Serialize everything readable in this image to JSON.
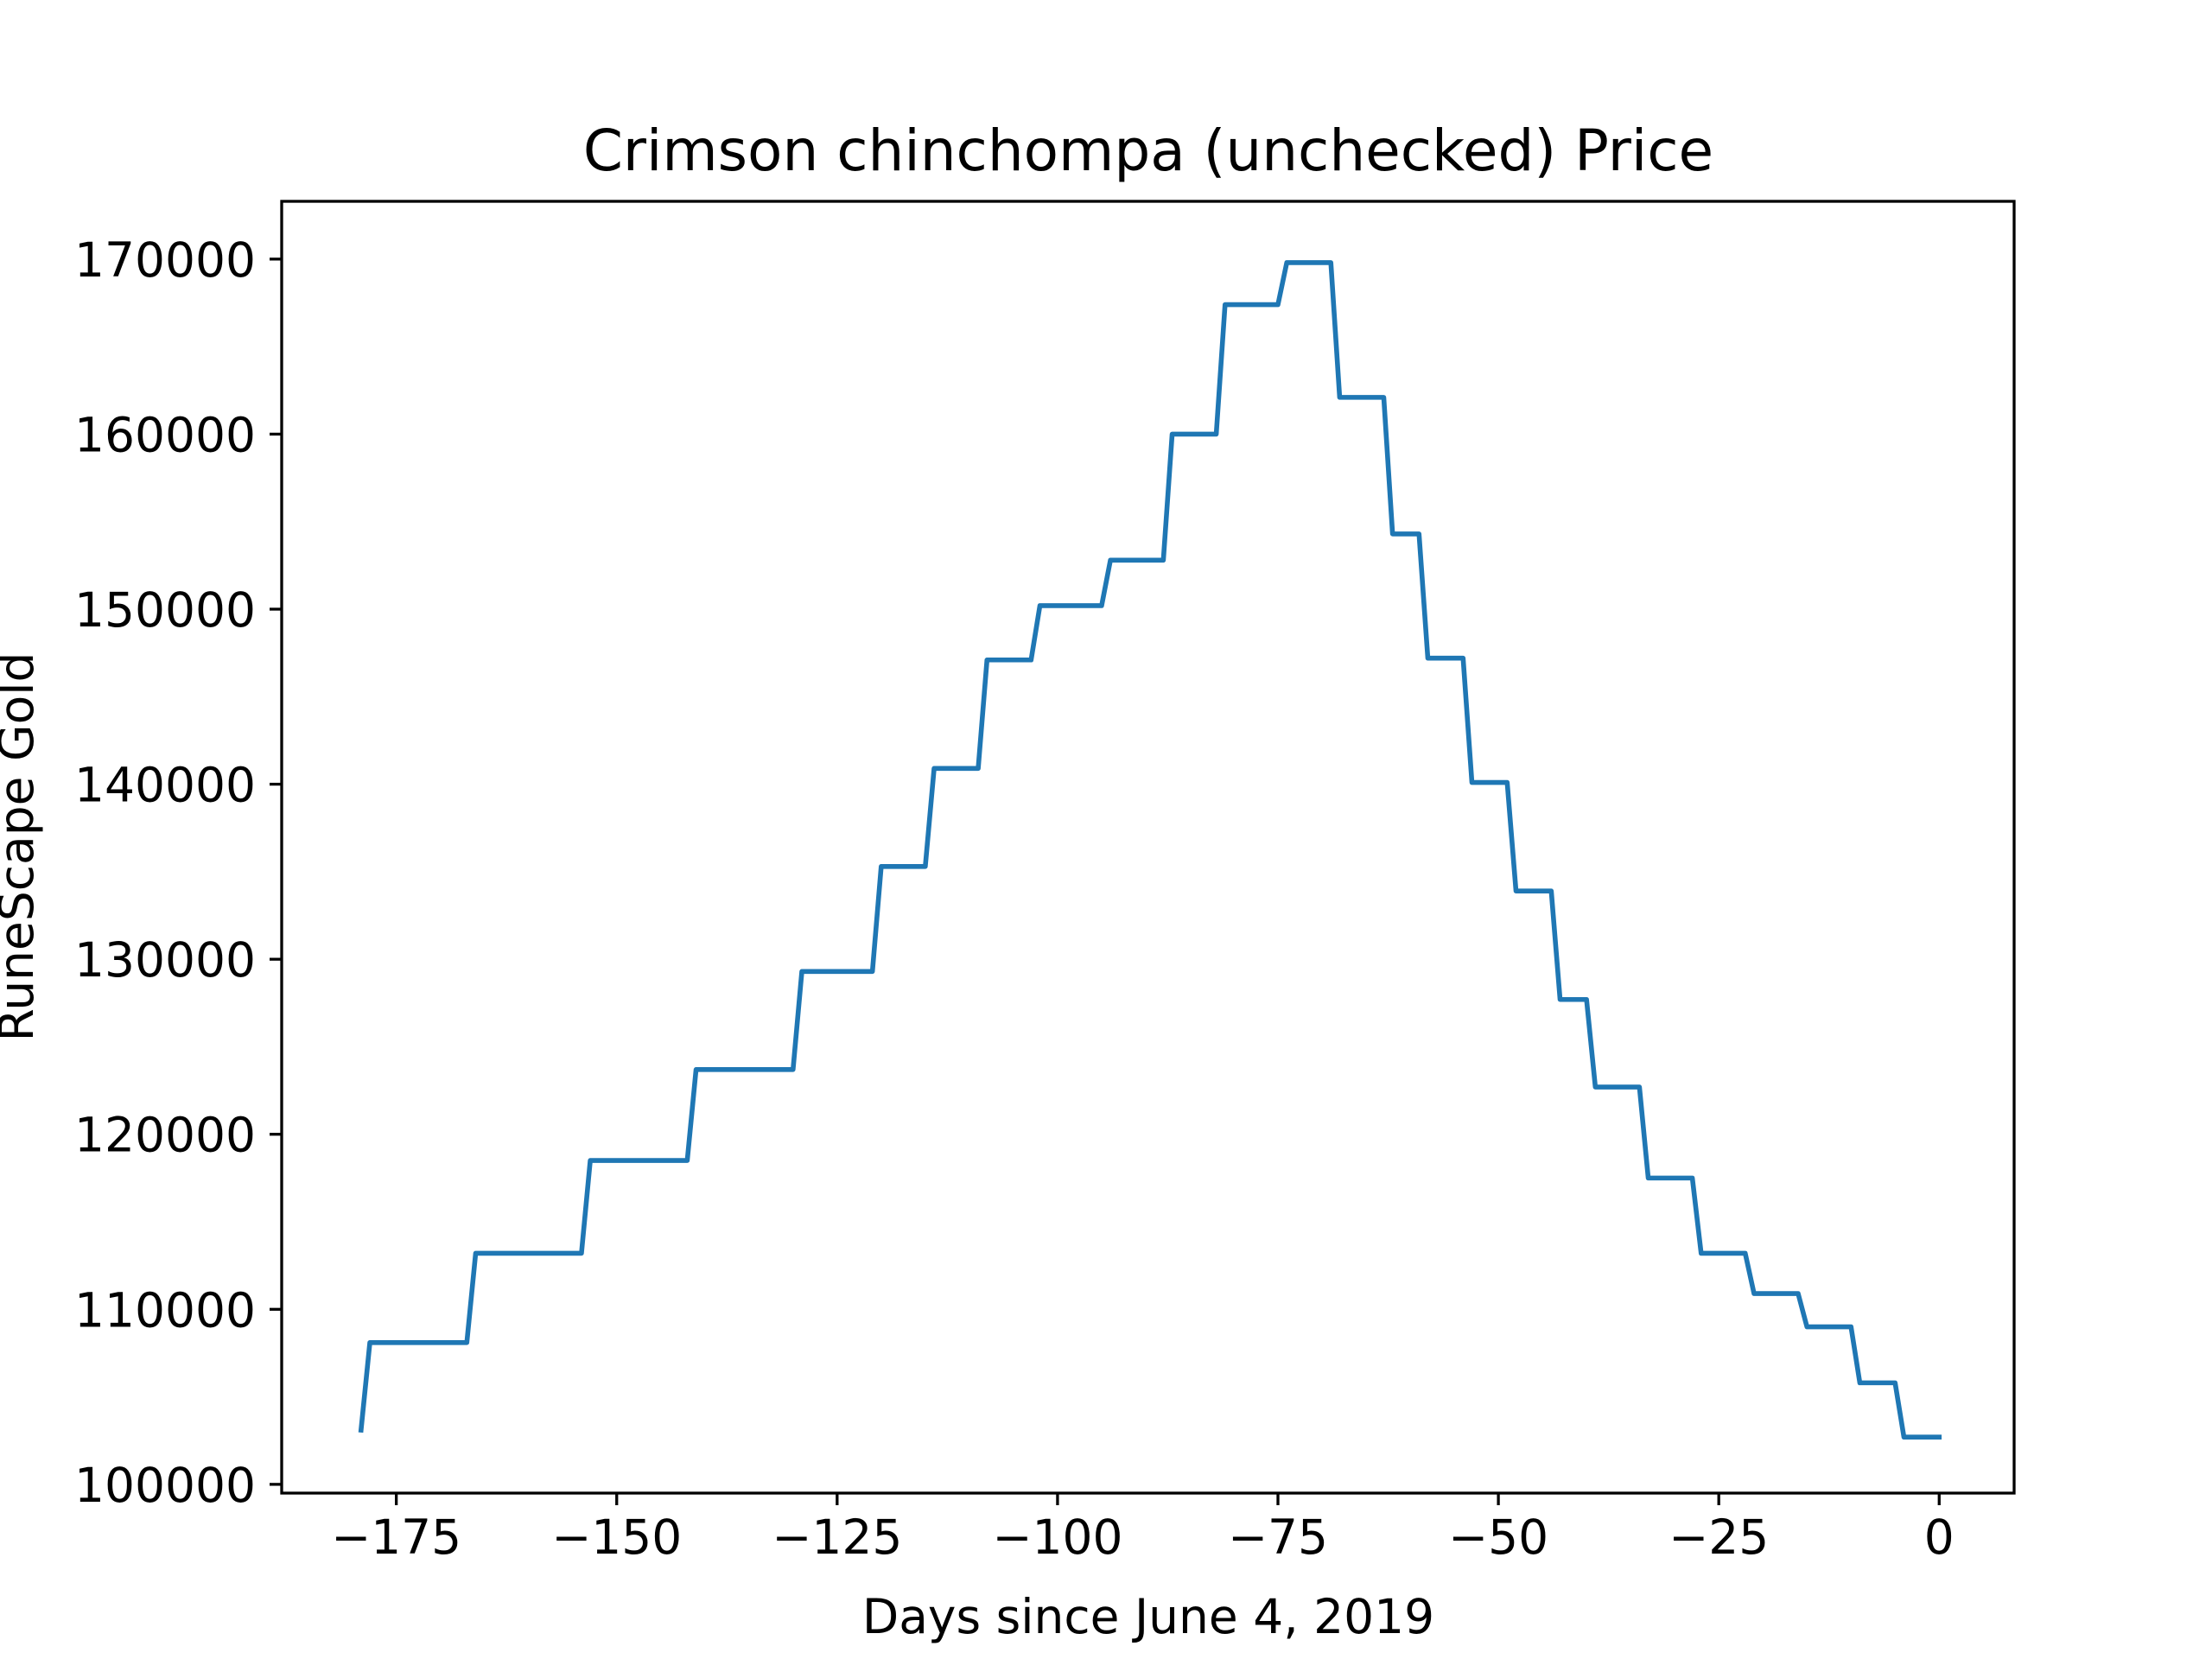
{
  "chart_data": {
    "type": "line",
    "title": "Crimson chinchompa (unchecked) Price",
    "xlabel": "Days since June 4, 2019",
    "ylabel": "RuneScape Gold",
    "xlim": [
      -188,
      8.5
    ],
    "ylim": [
      99500,
      173300
    ],
    "x_ticks": [
      -175,
      -150,
      -125,
      -100,
      -75,
      -50,
      -25,
      0
    ],
    "x_tick_labels": [
      "−175",
      "−150",
      "−125",
      "−100",
      "−75",
      "−50",
      "−25",
      "0"
    ],
    "y_ticks": [
      100000,
      110000,
      120000,
      130000,
      140000,
      150000,
      160000,
      170000
    ],
    "y_tick_labels": [
      "100000",
      "110000",
      "120000",
      "130000",
      "140000",
      "150000",
      "160000",
      "170000"
    ],
    "grid": false,
    "colors": {
      "series": "#1f77b4"
    },
    "series": [
      {
        "x": [
          -179,
          -178,
          -167,
          -166,
          -154,
          -153,
          -142,
          -141,
          -130,
          -129,
          -121,
          -120,
          -115,
          -114,
          -109,
          -108,
          -103,
          -102,
          -95,
          -94,
          -88,
          -87,
          -82,
          -81,
          -75,
          -74,
          -69,
          -68,
          -63,
          -62,
          -59,
          -58,
          -54,
          -53,
          -49,
          -48,
          -44,
          -43,
          -40,
          -39,
          -34,
          -33,
          -28,
          -27,
          -22,
          -21,
          -16,
          -15,
          -10,
          -9,
          -5,
          -4,
          0
        ],
        "y": [
          103100,
          108100,
          108100,
          113200,
          113200,
          118500,
          118500,
          123700,
          123700,
          129300,
          129300,
          135300,
          135300,
          140900,
          140900,
          147100,
          147100,
          150200,
          150200,
          152800,
          152800,
          160000,
          160000,
          167400,
          167400,
          169800,
          169800,
          162100,
          162100,
          154300,
          154300,
          147200,
          147200,
          140100,
          140100,
          133900,
          133900,
          127700,
          127700,
          122700,
          122700,
          117500,
          117500,
          113200,
          113200,
          110900,
          110900,
          109000,
          109000,
          105800,
          105800,
          102700,
          102700
        ]
      }
    ]
  }
}
